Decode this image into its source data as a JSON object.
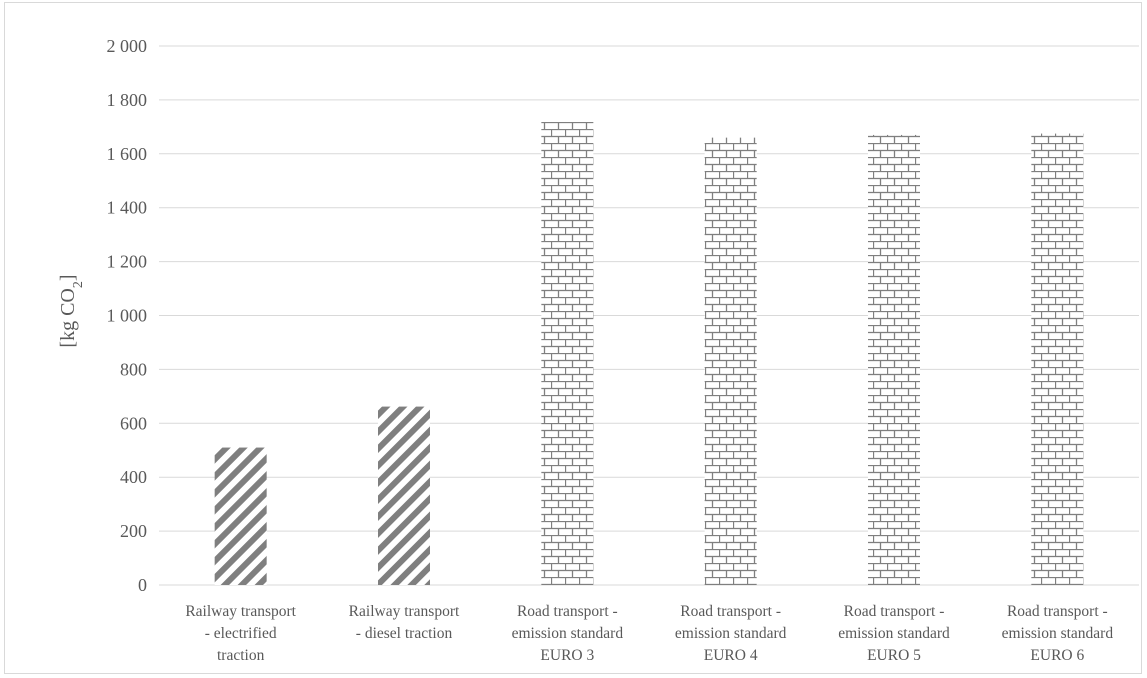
{
  "chart_data": {
    "type": "bar",
    "categories": [
      [
        "Railway transport",
        "- electrified",
        "traction"
      ],
      [
        "Railway transport",
        "- diesel traction"
      ],
      [
        "Road transport -",
        "emission standard",
        "EURO 3"
      ],
      [
        "Road transport -",
        "emission standard",
        "EURO 4"
      ],
      [
        "Road transport -",
        "emission standard",
        "EURO 5"
      ],
      [
        "Road transport -",
        "emission standard",
        "EURO 6"
      ]
    ],
    "values": [
      510,
      662,
      1718,
      1660,
      1670,
      1675
    ],
    "patterns": [
      "diagonal",
      "diagonal",
      "brick",
      "brick",
      "brick",
      "brick"
    ],
    "ylabel": "[kg CO",
    "ylabel_sub": "2",
    "ylabel_close": "]",
    "ylim": [
      0,
      2000
    ],
    "yticks": [
      0,
      200,
      400,
      600,
      800,
      1000,
      1200,
      1400,
      1600,
      1800,
      2000
    ],
    "ytick_labels": [
      "0",
      "200",
      "400",
      "600",
      "800",
      "1 000",
      "1 200",
      "1 400",
      "1 600",
      "1 800",
      "2 000"
    ],
    "grid": true,
    "colors": {
      "bar": "#7f7f7f",
      "grid": "#d9d9d9",
      "text": "#595959"
    }
  }
}
